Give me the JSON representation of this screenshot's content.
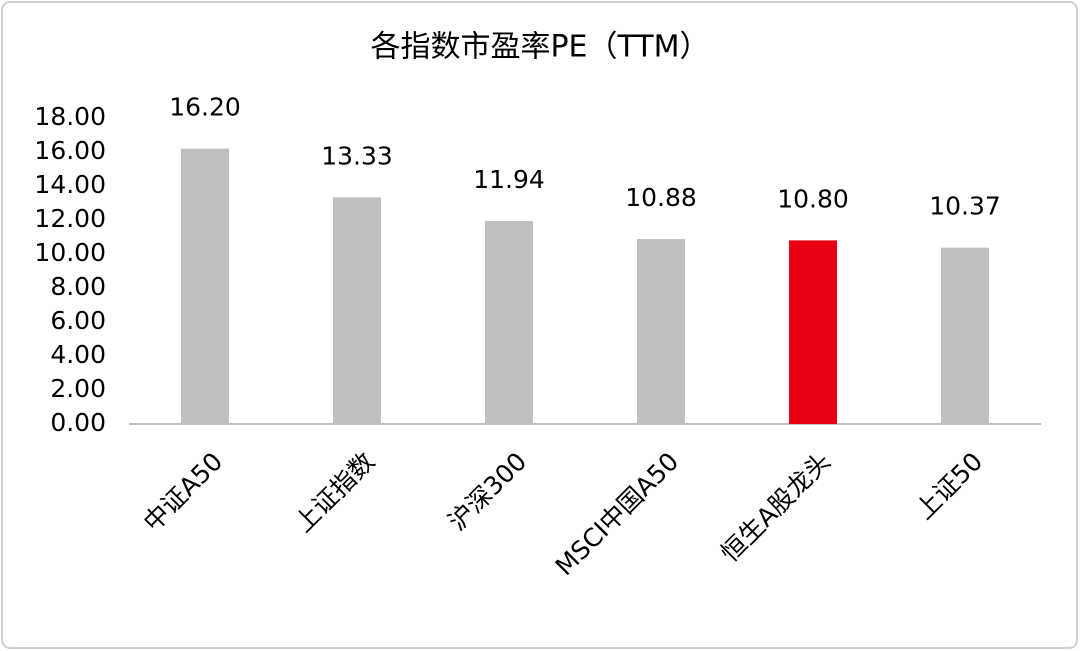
{
  "chart_data": {
    "type": "bar",
    "title": "各指数市盈率PE（TTM）",
    "categories": [
      "中证A50",
      "上证指数",
      "沪深300",
      "MSCI中国A50",
      "恒生A股龙头",
      "上证50"
    ],
    "values": [
      16.2,
      13.33,
      11.94,
      10.88,
      10.8,
      10.37
    ],
    "value_labels": [
      "16.20",
      "13.33",
      "11.94",
      "10.88",
      "10.80",
      "10.37"
    ],
    "colors": [
      "#bfbfbf",
      "#bfbfbf",
      "#bfbfbf",
      "#bfbfbf",
      "#e60012",
      "#bfbfbf"
    ],
    "ylim": [
      0,
      18
    ],
    "yticks": [
      {
        "value": 0,
        "label": "0.00"
      },
      {
        "value": 2,
        "label": "2.00"
      },
      {
        "value": 4,
        "label": "4.00"
      },
      {
        "value": 6,
        "label": "6.00"
      },
      {
        "value": 8,
        "label": "8.00"
      },
      {
        "value": 10,
        "label": "10.00"
      },
      {
        "value": 12,
        "label": "12.00"
      },
      {
        "value": 14,
        "label": "14.00"
      },
      {
        "value": 16,
        "label": "16.00"
      },
      {
        "value": 18,
        "label": "18.00"
      }
    ],
    "grid": false
  }
}
